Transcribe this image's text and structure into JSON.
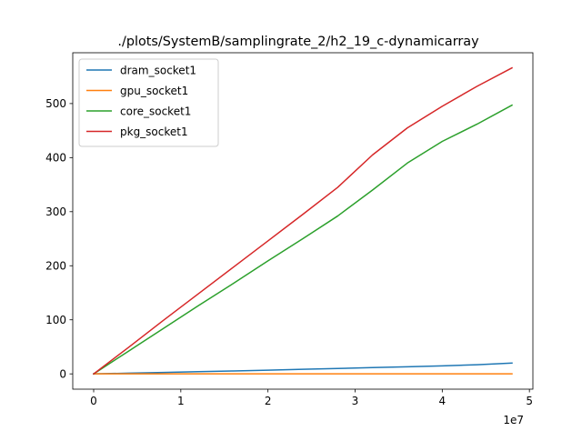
{
  "chart_data": {
    "type": "line",
    "title": "./plots/SystemB/samplingrate_2/h2_19_c-dynamicarray",
    "xlabel": "",
    "ylabel": "",
    "x_scale_label": "1e7",
    "xlim": [
      -2400000,
      50400000
    ],
    "ylim": [
      -28.3,
      594.0
    ],
    "x_ticks": [
      0,
      10000000,
      20000000,
      30000000,
      40000000,
      50000000
    ],
    "x_tick_labels": [
      "0",
      "1",
      "2",
      "3",
      "4",
      "5"
    ],
    "y_ticks": [
      0,
      100,
      200,
      300,
      400,
      500
    ],
    "y_tick_labels": [
      "0",
      "100",
      "200",
      "300",
      "400",
      "500"
    ],
    "grid": false,
    "legend_position": "top-left",
    "x": [
      0,
      4000000,
      8000000,
      12000000,
      16000000,
      20000000,
      24000000,
      28000000,
      32000000,
      36000000,
      40000000,
      44000000,
      48000000
    ],
    "series": [
      {
        "name": "dram_socket1",
        "color": "#1f77b4",
        "values": [
          0,
          1.3,
          2.7,
          4.0,
          5.4,
          6.9,
          8.4,
          10.0,
          11.6,
          13.2,
          14.8,
          17.0,
          20.0
        ]
      },
      {
        "name": "gpu_socket1",
        "color": "#ff7f0e",
        "values": [
          0,
          0,
          0,
          0,
          0,
          0,
          0,
          0,
          0,
          0,
          0,
          0,
          0
        ]
      },
      {
        "name": "core_socket1",
        "color": "#2ca02c",
        "values": [
          0,
          42,
          84,
          126,
          167,
          209,
          250,
          292,
          340,
          390,
          430,
          462,
          497
        ]
      },
      {
        "name": "pkg_socket1",
        "color": "#d62728",
        "values": [
          0,
          49,
          99,
          148,
          197,
          246,
          295,
          345,
          405,
          455,
          495,
          532,
          566
        ]
      }
    ]
  }
}
